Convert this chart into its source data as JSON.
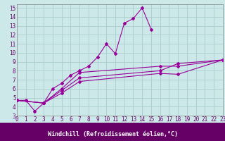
{
  "bg_color": "#cce8e8",
  "grid_color": "#aacccc",
  "line_color": "#990099",
  "xlabel": "Windchill (Refroidissement éolien,°C)",
  "xlabel_color": "#660066",
  "xlim": [
    0,
    23
  ],
  "ylim": [
    3,
    15.4
  ],
  "xticks": [
    0,
    1,
    2,
    3,
    4,
    5,
    6,
    7,
    8,
    9,
    10,
    11,
    12,
    13,
    14,
    15,
    16,
    17,
    18,
    19,
    20,
    21,
    22,
    23
  ],
  "yticks": [
    3,
    4,
    5,
    6,
    7,
    8,
    9,
    10,
    11,
    12,
    13,
    14,
    15
  ],
  "line_data": [
    {
      "x": [
        0,
        1,
        2,
        3,
        4,
        5,
        6,
        7,
        8,
        9,
        10,
        11,
        12,
        13,
        14,
        15
      ],
      "y": [
        4.7,
        4.7,
        3.5,
        4.4,
        6.0,
        6.6,
        7.5,
        8.0,
        8.5,
        9.5,
        11.0,
        9.9,
        13.3,
        13.8,
        15.0,
        12.6
      ]
    },
    {
      "x": [
        0,
        3,
        5,
        7,
        16,
        18,
        23
      ],
      "y": [
        4.7,
        4.4,
        6.0,
        7.8,
        8.5,
        8.5,
        9.2
      ]
    },
    {
      "x": [
        0,
        3,
        5,
        7,
        16,
        18,
        23
      ],
      "y": [
        4.7,
        4.4,
        5.8,
        7.2,
        8.0,
        8.8,
        9.2
      ]
    },
    {
      "x": [
        0,
        3,
        5,
        7,
        16,
        18,
        23
      ],
      "y": [
        4.7,
        4.4,
        5.5,
        6.8,
        7.7,
        7.6,
        9.2
      ]
    }
  ],
  "tick_fontsize": 5.5,
  "xlabel_fontsize": 6.0,
  "lw": 0.8,
  "ms": 2.0
}
